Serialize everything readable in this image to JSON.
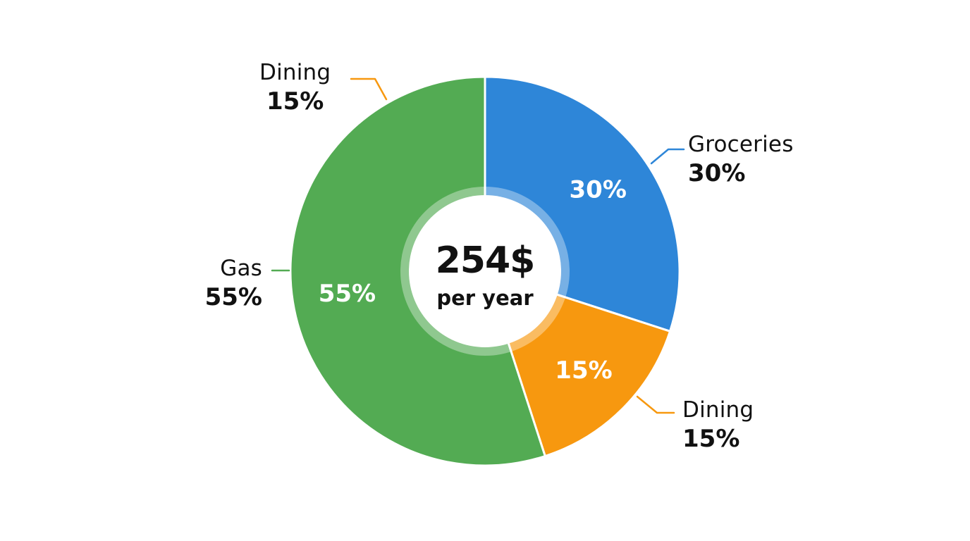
{
  "chart_data": {
    "type": "pie",
    "style": "donut",
    "center": {
      "value": "254$",
      "caption": "per year"
    },
    "slices": [
      {
        "label": "Groceries",
        "value": 30,
        "inner_label": "30%",
        "outer_pct": "30%",
        "color": "#2E86D8"
      },
      {
        "label": "Dining",
        "value": 15,
        "inner_label": "15%",
        "outer_pct": "15%",
        "color": "#F7980F"
      },
      {
        "label": "Gas",
        "value": 55,
        "inner_label": "55%",
        "outer_pct": "55%",
        "color": "#53AB53"
      }
    ],
    "extra_callout": {
      "label": "Dining",
      "pct": "15%",
      "color": "#F7980F"
    }
  }
}
